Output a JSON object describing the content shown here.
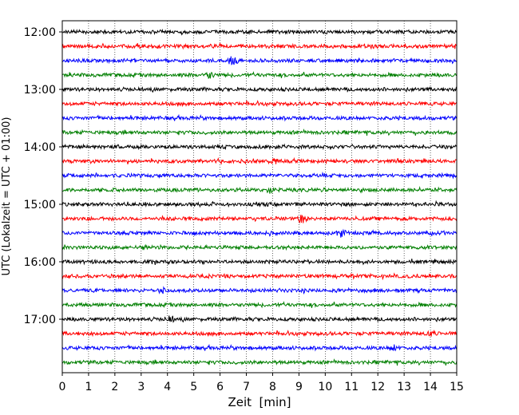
{
  "chart_data": {
    "type": "line",
    "xlabel": "Zeit  [min]",
    "ylabel": "UTC (Lokalzeit = UTC + 01:00)",
    "xlim": [
      0,
      15
    ],
    "x_ticks": [
      "0",
      "1",
      "2",
      "3",
      "4",
      "5",
      "6",
      "7",
      "8",
      "9",
      "10",
      "11",
      "12",
      "13",
      "14",
      "15"
    ],
    "y_tick_labels": [
      "12:00",
      "13:00",
      "14:00",
      "15:00",
      "16:00",
      "17:00"
    ],
    "grid": "vertical dotted",
    "trace_interval_min": 15,
    "start_time": "12:00",
    "end_time": "17:45",
    "trace_count": 24,
    "trace_colors": [
      "#000000",
      "#ff0000",
      "#0000ff",
      "#007f00"
    ],
    "series": [
      {
        "start": "12:00",
        "color": "#000000"
      },
      {
        "start": "12:15",
        "color": "#ff0000"
      },
      {
        "start": "12:30",
        "color": "#0000ff"
      },
      {
        "start": "12:45",
        "color": "#007f00"
      },
      {
        "start": "13:00",
        "color": "#000000"
      },
      {
        "start": "13:15",
        "color": "#ff0000"
      },
      {
        "start": "13:30",
        "color": "#0000ff"
      },
      {
        "start": "13:45",
        "color": "#007f00"
      },
      {
        "start": "14:00",
        "color": "#000000"
      },
      {
        "start": "14:15",
        "color": "#ff0000"
      },
      {
        "start": "14:30",
        "color": "#0000ff"
      },
      {
        "start": "14:45",
        "color": "#007f00"
      },
      {
        "start": "15:00",
        "color": "#000000"
      },
      {
        "start": "15:15",
        "color": "#ff0000"
      },
      {
        "start": "15:30",
        "color": "#0000ff"
      },
      {
        "start": "15:45",
        "color": "#007f00"
      },
      {
        "start": "16:00",
        "color": "#000000"
      },
      {
        "start": "16:15",
        "color": "#ff0000"
      },
      {
        "start": "16:30",
        "color": "#0000ff"
      },
      {
        "start": "16:45",
        "color": "#007f00"
      },
      {
        "start": "17:00",
        "color": "#000000"
      },
      {
        "start": "17:15",
        "color": "#ff0000"
      },
      {
        "start": "17:30",
        "color": "#0000ff"
      },
      {
        "start": "17:45",
        "color": "#007f00"
      }
    ]
  }
}
